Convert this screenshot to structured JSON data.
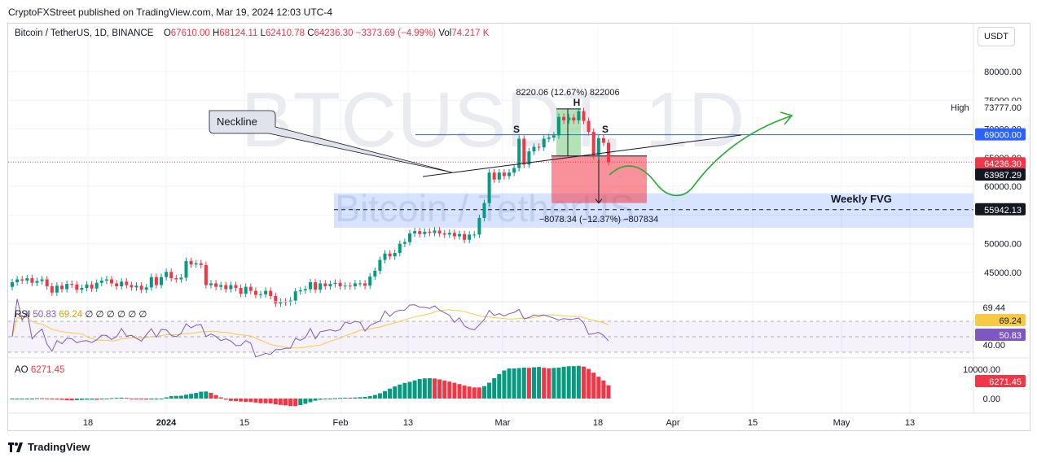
{
  "credit": "CryptoFXStreet published on TradingView.com, Mar 19, 2024 12:03 UTC-4",
  "currency": "USDT",
  "legend": {
    "symbol": "Bitcoin / TetherUS, 1D, BINANCE",
    "o_label": "O",
    "o": "67610.00",
    "h_label": "H",
    "h": "68124.11",
    "l_label": "L",
    "l": "62410.78",
    "c_label": "C",
    "c": "64236.30",
    "chg": "−3373.69 (−4.99%)",
    "vol_label": "Vol",
    "vol": "74.217 K"
  },
  "watermark": {
    "ticker": "BTCUSDT, 1D",
    "name": "Bitcoin / TetherUS"
  },
  "annotations": {
    "neckline": "Neckline",
    "head": "H",
    "shoulder_left": "S",
    "shoulder_right": "S",
    "measure_up": "8220.06 (12.67%) 822006",
    "measure_down": "−8078.34 (−12.37%) −807834",
    "weekly_fvg": "Weekly FVG",
    "high_label": "High"
  },
  "price_tags": {
    "high": "73777.00",
    "level_blue": "69000.00",
    "last": "64236.30",
    "countdown": "63987.29",
    "fvg_level": "55942.13"
  },
  "colors": {
    "up": "#089981",
    "down": "#f23645",
    "blue": "#2962ff",
    "rsi": "#7e57c2",
    "rsi_ma": "#f7c945",
    "arrow": "#22ab2f"
  },
  "footer": "TradingView",
  "chart_data": {
    "type": "candlestick",
    "y_axis": {
      "ticks": [
        "80000.00",
        "75000.00",
        "70000.00",
        "65000.00",
        "60000.00",
        "50000.00",
        "45000.00"
      ],
      "ylim": [
        40000,
        82000
      ]
    },
    "x_axis": {
      "ticks": [
        "18",
        "2024",
        "15",
        "Feb",
        "13",
        "Mar",
        "18",
        "Apr",
        "15",
        "May",
        "13"
      ]
    },
    "levels": {
      "high": 73777,
      "resistance": 69000,
      "last": 64236.3,
      "fvg_mid": 55942.13
    },
    "candles": [
      {
        "o": 42500,
        "c": 43300
      },
      {
        "o": 43300,
        "c": 43800
      },
      {
        "o": 43800,
        "c": 43600
      },
      {
        "o": 43600,
        "c": 44000
      },
      {
        "o": 44000,
        "c": 43200
      },
      {
        "o": 43200,
        "c": 43500
      },
      {
        "o": 43500,
        "c": 43800
      },
      {
        "o": 43800,
        "c": 42600
      },
      {
        "o": 42600,
        "c": 41500
      },
      {
        "o": 41500,
        "c": 42700
      },
      {
        "o": 42700,
        "c": 42100
      },
      {
        "o": 42100,
        "c": 43000
      },
      {
        "o": 43000,
        "c": 42900
      },
      {
        "o": 42900,
        "c": 42000
      },
      {
        "o": 42000,
        "c": 42300
      },
      {
        "o": 42300,
        "c": 42900
      },
      {
        "o": 42900,
        "c": 42200
      },
      {
        "o": 42200,
        "c": 43200
      },
      {
        "o": 43200,
        "c": 43600
      },
      {
        "o": 43600,
        "c": 43800
      },
      {
        "o": 43800,
        "c": 43100
      },
      {
        "o": 43100,
        "c": 42600
      },
      {
        "o": 42600,
        "c": 43400
      },
      {
        "o": 43400,
        "c": 42800
      },
      {
        "o": 42800,
        "c": 42400
      },
      {
        "o": 42400,
        "c": 42700
      },
      {
        "o": 42700,
        "c": 42000
      },
      {
        "o": 42000,
        "c": 42400
      },
      {
        "o": 42400,
        "c": 44200
      },
      {
        "o": 44200,
        "c": 42800
      },
      {
        "o": 42800,
        "c": 44200
      },
      {
        "o": 44200,
        "c": 45100
      },
      {
        "o": 45100,
        "c": 44000
      },
      {
        "o": 44000,
        "c": 43800
      },
      {
        "o": 43800,
        "c": 44100
      },
      {
        "o": 44100,
        "c": 47000
      },
      {
        "o": 47000,
        "c": 46400
      },
      {
        "o": 46400,
        "c": 46600
      },
      {
        "o": 46600,
        "c": 46300
      },
      {
        "o": 46300,
        "c": 42800
      },
      {
        "o": 42800,
        "c": 43100
      },
      {
        "o": 43100,
        "c": 42500
      },
      {
        "o": 42500,
        "c": 42800
      },
      {
        "o": 42800,
        "c": 42100
      },
      {
        "o": 42100,
        "c": 42800
      },
      {
        "o": 42800,
        "c": 42300
      },
      {
        "o": 42300,
        "c": 41300
      },
      {
        "o": 41300,
        "c": 42500
      },
      {
        "o": 42500,
        "c": 41800
      },
      {
        "o": 41800,
        "c": 41100
      },
      {
        "o": 41100,
        "c": 41200
      },
      {
        "o": 41200,
        "c": 41800
      },
      {
        "o": 41800,
        "c": 40900
      },
      {
        "o": 40900,
        "c": 39600
      },
      {
        "o": 39600,
        "c": 39900
      },
      {
        "o": 39900,
        "c": 39800
      },
      {
        "o": 39800,
        "c": 40100
      },
      {
        "o": 40100,
        "c": 41700
      },
      {
        "o": 41700,
        "c": 41900
      },
      {
        "o": 41900,
        "c": 42100
      },
      {
        "o": 42100,
        "c": 43300
      },
      {
        "o": 43300,
        "c": 42000
      },
      {
        "o": 42000,
        "c": 43100
      },
      {
        "o": 43100,
        "c": 42600
      },
      {
        "o": 42600,
        "c": 43000
      },
      {
        "o": 43000,
        "c": 43200
      },
      {
        "o": 43200,
        "c": 42600
      },
      {
        "o": 42600,
        "c": 42700
      },
      {
        "o": 42700,
        "c": 42600
      },
      {
        "o": 42600,
        "c": 43100
      },
      {
        "o": 43100,
        "c": 43100
      },
      {
        "o": 43100,
        "c": 42700
      },
      {
        "o": 42700,
        "c": 44300
      },
      {
        "o": 44300,
        "c": 45300
      },
      {
        "o": 45300,
        "c": 47200
      },
      {
        "o": 47200,
        "c": 48300
      },
      {
        "o": 48300,
        "c": 47800
      },
      {
        "o": 47800,
        "c": 48400
      },
      {
        "o": 48400,
        "c": 50000
      },
      {
        "o": 50000,
        "c": 50300
      },
      {
        "o": 50300,
        "c": 51800
      },
      {
        "o": 51800,
        "c": 52200
      },
      {
        "o": 52200,
        "c": 51700
      },
      {
        "o": 51700,
        "c": 52100
      },
      {
        "o": 52100,
        "c": 51900
      },
      {
        "o": 51900,
        "c": 52300
      },
      {
        "o": 52300,
        "c": 51800
      },
      {
        "o": 51800,
        "c": 51600
      },
      {
        "o": 51600,
        "c": 51900
      },
      {
        "o": 51900,
        "c": 51300
      },
      {
        "o": 51300,
        "c": 51700
      },
      {
        "o": 51700,
        "c": 50700
      },
      {
        "o": 50700,
        "c": 51600
      },
      {
        "o": 51600,
        "c": 51600
      },
      {
        "o": 51600,
        "c": 54500
      },
      {
        "o": 54500,
        "c": 57100
      },
      {
        "o": 57100,
        "c": 62400
      },
      {
        "o": 62400,
        "c": 61200
      },
      {
        "o": 61200,
        "c": 62400
      },
      {
        "o": 62400,
        "c": 61800
      },
      {
        "o": 61800,
        "c": 62400
      },
      {
        "o": 62400,
        "c": 63200
      },
      {
        "o": 63200,
        "c": 68300
      },
      {
        "o": 68300,
        "c": 63800
      },
      {
        "o": 63800,
        "c": 66100
      },
      {
        "o": 66100,
        "c": 66900
      },
      {
        "o": 66900,
        "c": 66800
      },
      {
        "o": 66800,
        "c": 68300
      },
      {
        "o": 68300,
        "c": 68500
      },
      {
        "o": 68500,
        "c": 68900
      },
      {
        "o": 68900,
        "c": 72100
      },
      {
        "o": 72100,
        "c": 71500
      },
      {
        "o": 71500,
        "c": 72000
      },
      {
        "o": 72000,
        "c": 71500
      },
      {
        "o": 71500,
        "c": 73100
      },
      {
        "o": 73100,
        "c": 71400
      },
      {
        "o": 71400,
        "c": 69500
      },
      {
        "o": 69500,
        "c": 65300
      },
      {
        "o": 65300,
        "c": 68400
      },
      {
        "o": 68400,
        "c": 67600
      },
      {
        "o": 67600,
        "c": 64236
      }
    ],
    "rsi": {
      "name": "RSI",
      "values_shown": [
        "50.83",
        "69.24"
      ],
      "placeholders": "∅ ∅ ∅ ∅ ∅ ∅",
      "axis_ticks": [
        "69.44",
        "40.00"
      ],
      "tags": [
        "69.24",
        "50.83"
      ]
    },
    "ao": {
      "name": "AO",
      "value": "6271.45",
      "axis_ticks": [
        "10000.00",
        "0.00"
      ],
      "tag": "6271.45"
    }
  }
}
